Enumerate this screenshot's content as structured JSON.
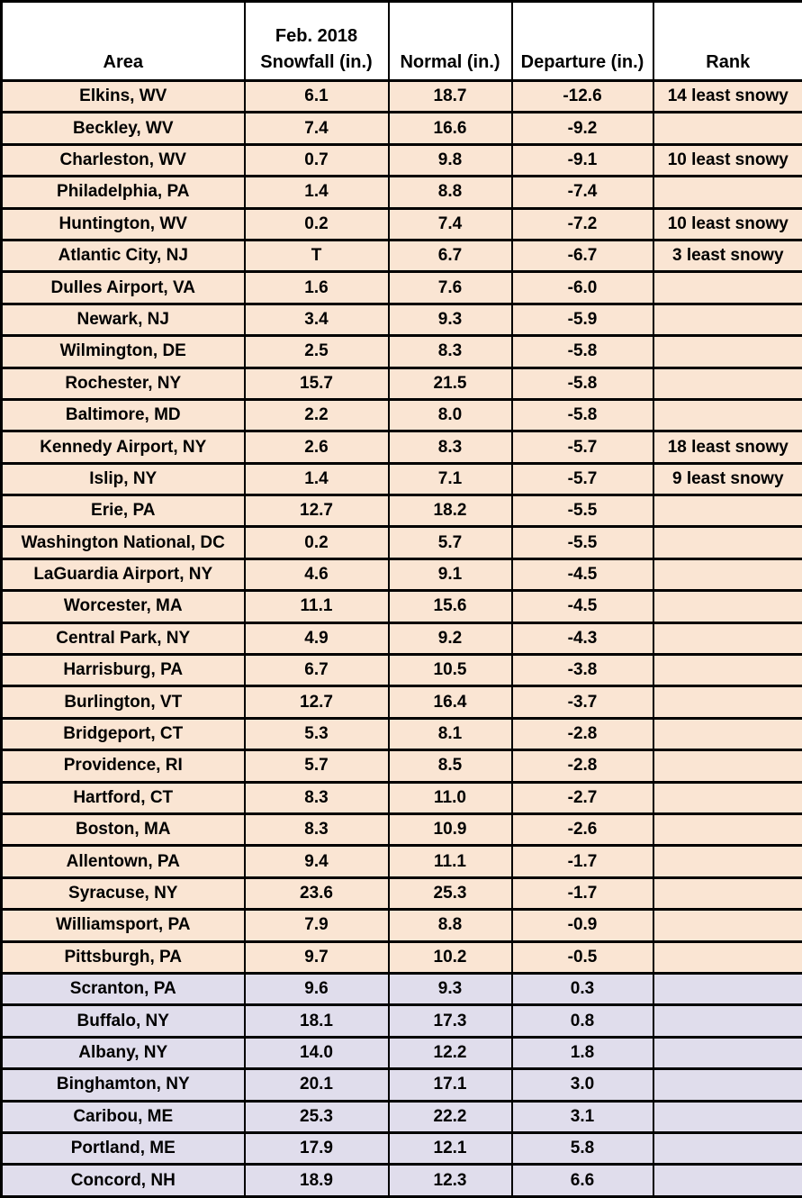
{
  "title": "Feb. 2018 snowfall departures table",
  "colors": {
    "below_normal_row_bg": "#FAE5D3",
    "above_normal_row_bg": "#E0DDEC",
    "header_bg": "#FFFFFF",
    "border": "#000000",
    "text": "#000000"
  },
  "chart_data": {
    "type": "table",
    "title": "Feb. 2018 Snowfall vs. Normal",
    "headers": [
      "Area",
      "Feb. 2018\nSnowfall (in.)",
      "Normal (in.)",
      "Departure (in.)",
      "Rank"
    ],
    "rows": [
      [
        "Elkins, WV",
        "6.1",
        "18.7",
        "-12.6",
        "14 least snowy"
      ],
      [
        "Beckley, WV",
        "7.4",
        "16.6",
        "-9.2",
        ""
      ],
      [
        "Charleston, WV",
        "0.7",
        "9.8",
        "-9.1",
        "10 least snowy"
      ],
      [
        "Philadelphia, PA",
        "1.4",
        "8.8",
        "-7.4",
        ""
      ],
      [
        "Huntington, WV",
        "0.2",
        "7.4",
        "-7.2",
        "10 least snowy"
      ],
      [
        "Atlantic City, NJ",
        "T",
        "6.7",
        "-6.7",
        "3 least snowy"
      ],
      [
        "Dulles Airport, VA",
        "1.6",
        "7.6",
        "-6.0",
        ""
      ],
      [
        "Newark, NJ",
        "3.4",
        "9.3",
        "-5.9",
        ""
      ],
      [
        "Wilmington, DE",
        "2.5",
        "8.3",
        "-5.8",
        ""
      ],
      [
        "Rochester, NY",
        "15.7",
        "21.5",
        "-5.8",
        ""
      ],
      [
        "Baltimore, MD",
        "2.2",
        "8.0",
        "-5.8",
        ""
      ],
      [
        "Kennedy Airport, NY",
        "2.6",
        "8.3",
        "-5.7",
        "18 least snowy"
      ],
      [
        "Islip, NY",
        "1.4",
        "7.1",
        "-5.7",
        "9 least snowy"
      ],
      [
        "Erie, PA",
        "12.7",
        "18.2",
        "-5.5",
        ""
      ],
      [
        "Washington National, DC",
        "0.2",
        "5.7",
        "-5.5",
        ""
      ],
      [
        "LaGuardia Airport, NY",
        "4.6",
        "9.1",
        "-4.5",
        ""
      ],
      [
        "Worcester, MA",
        "11.1",
        "15.6",
        "-4.5",
        ""
      ],
      [
        "Central Park, NY",
        "4.9",
        "9.2",
        "-4.3",
        ""
      ],
      [
        "Harrisburg, PA",
        "6.7",
        "10.5",
        "-3.8",
        ""
      ],
      [
        "Burlington, VT",
        "12.7",
        "16.4",
        "-3.7",
        ""
      ],
      [
        "Bridgeport, CT",
        "5.3",
        "8.1",
        "-2.8",
        ""
      ],
      [
        "Providence, RI",
        "5.7",
        "8.5",
        "-2.8",
        ""
      ],
      [
        "Hartford, CT",
        "8.3",
        "11.0",
        "-2.7",
        ""
      ],
      [
        "Boston, MA",
        "8.3",
        "10.9",
        "-2.6",
        ""
      ],
      [
        "Allentown, PA",
        "9.4",
        "11.1",
        "-1.7",
        ""
      ],
      [
        "Syracuse, NY",
        "23.6",
        "25.3",
        "-1.7",
        ""
      ],
      [
        "Williamsport, PA",
        "7.9",
        "8.8",
        "-0.9",
        ""
      ],
      [
        "Pittsburgh, PA",
        "9.7",
        "10.2",
        "-0.5",
        ""
      ],
      [
        "Scranton, PA",
        "9.6",
        "9.3",
        "0.3",
        ""
      ],
      [
        "Buffalo, NY",
        "18.1",
        "17.3",
        "0.8",
        ""
      ],
      [
        "Albany, NY",
        "14.0",
        "12.2",
        "1.8",
        ""
      ],
      [
        "Binghamton, NY",
        "20.1",
        "17.1",
        "3.0",
        ""
      ],
      [
        "Caribou, ME",
        "25.3",
        "22.2",
        "3.1",
        ""
      ],
      [
        "Portland, ME",
        "17.9",
        "12.1",
        "5.8",
        ""
      ],
      [
        "Concord, NH",
        "18.9",
        "12.3",
        "6.6",
        ""
      ]
    ]
  }
}
